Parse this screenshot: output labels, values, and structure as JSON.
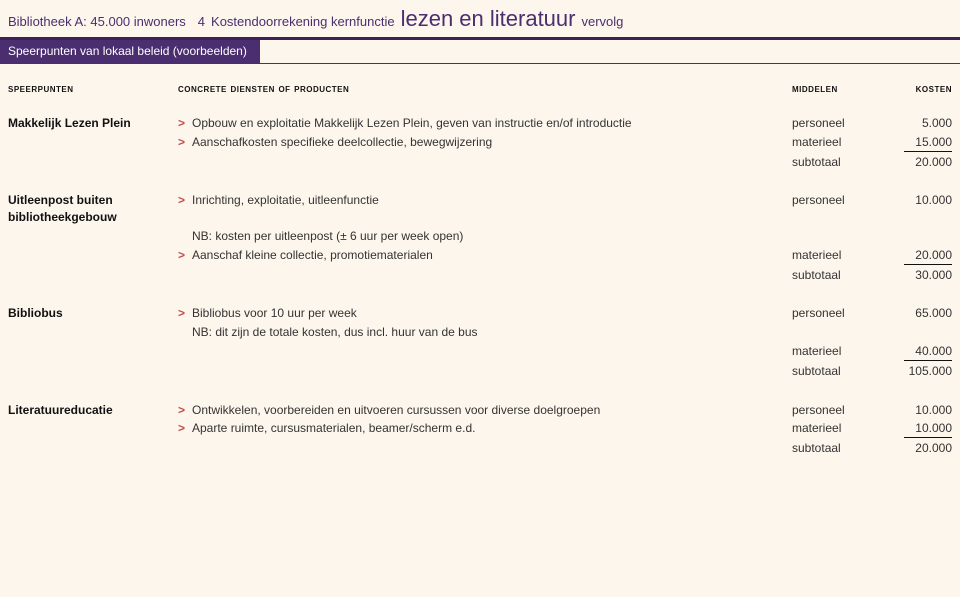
{
  "header": {
    "library_label": "Bibliotheek A: 45.000 inwoners",
    "title_num": "4",
    "title_lead": "Kostendoorrekening kernfunctie",
    "title_main": "lezen en literatuur",
    "title_suffix": "vervolg",
    "speerpunten_bar": "Speerpunten van lokaal beleid (voorbeelden)"
  },
  "columns": {
    "speerpunten": "speerpunten",
    "diensten": "concrete diensten of producten",
    "middelen": "middelen",
    "kosten": "kosten"
  },
  "sections": [
    {
      "speerpunt": "Makkelijk Lezen Plein",
      "lines": [
        {
          "bullet": true,
          "text": "Opbouw en exploitatie Makkelijk Lezen Plein, geven van instructie en/of introductie",
          "middel": "personeel",
          "kosten": "5.000",
          "underline": false
        },
        {
          "bullet": true,
          "text": "Aanschafkosten specifieke deelcollectie, bewegwijzering",
          "middel": "materieel",
          "kosten": "15.000",
          "underline": true
        },
        {
          "bullet": false,
          "text": "",
          "middel": "subtotaal",
          "kosten": "20.000",
          "underline": false
        }
      ]
    },
    {
      "speerpunt": "Uitleenpost buiten bibliotheek­gebouw",
      "lines": [
        {
          "bullet": true,
          "text": "Inrichting, exploitatie, uitleenfunctie",
          "middel": "personeel",
          "kosten": "10.000",
          "underline": false
        },
        {
          "bullet": false,
          "note": true,
          "text": "NB: kosten per uitleenpost (± 6 uur per week open)",
          "middel": "",
          "kosten": "",
          "underline": false
        },
        {
          "bullet": true,
          "text": "Aanschaf kleine collectie, promotiematerialen",
          "middel": "materieel",
          "kosten": "20.000",
          "underline": true
        },
        {
          "bullet": false,
          "text": "",
          "middel": "subtotaal",
          "kosten": "30.000",
          "underline": false
        }
      ]
    },
    {
      "speerpunt": "Bibliobus",
      "lines": [
        {
          "bullet": true,
          "text": "Bibliobus voor 10 uur per week",
          "middel": "personeel",
          "kosten": "65.000",
          "underline": false
        },
        {
          "bullet": false,
          "note": true,
          "text": "NB: dit zijn de totale kosten, dus incl. huur van de bus",
          "middel": "",
          "kosten": "",
          "underline": false
        },
        {
          "bullet": false,
          "text": "",
          "middel": "materieel",
          "kosten": "40.000",
          "underline": true
        },
        {
          "bullet": false,
          "text": "",
          "middel": "subtotaal",
          "kosten": "105.000",
          "underline": false
        }
      ]
    },
    {
      "speerpunt": "Literatuureducatie",
      "lines": [
        {
          "bullet": true,
          "text": "Ontwikkelen, voorbereiden en uitvoeren cursussen voor diverse doelgroepen",
          "middel": "personeel",
          "kosten": "10.000",
          "underline": false
        },
        {
          "bullet": true,
          "text": "Aparte ruimte, cursusmaterialen, beamer/scherm e.d.",
          "middel": "materieel",
          "kosten": "10.000",
          "underline": true
        },
        {
          "bullet": false,
          "text": "",
          "middel": "subtotaal",
          "kosten": "20.000",
          "underline": false
        }
      ]
    }
  ]
}
